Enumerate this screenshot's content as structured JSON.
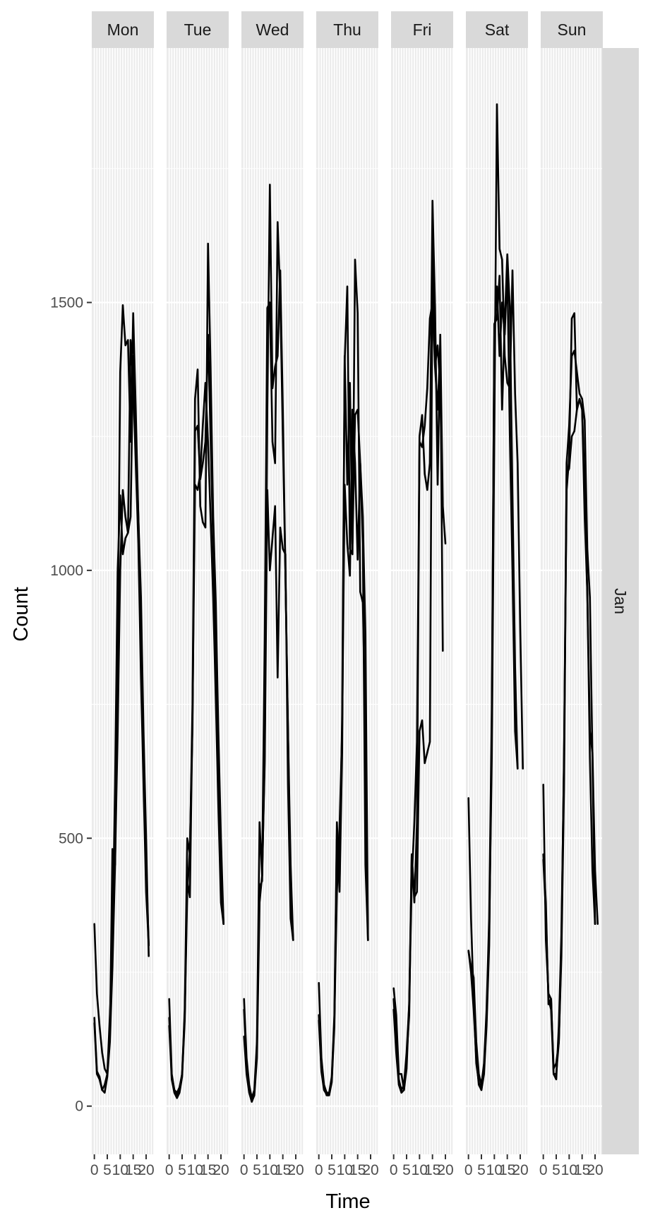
{
  "chart_data": {
    "type": "line",
    "facet_columns": [
      "Mon",
      "Tue",
      "Wed",
      "Thu",
      "Fri",
      "Sat",
      "Sun"
    ],
    "facet_row": "Jan",
    "xlabel": "Time",
    "ylabel": "Count",
    "xlim": [
      -1,
      23
    ],
    "ylim": [
      -90,
      1975
    ],
    "x_ticks": [
      0,
      5,
      10,
      15,
      20
    ],
    "x_tick_labels": [
      "0",
      "5",
      "10",
      "15",
      "20"
    ],
    "y_ticks": [
      0,
      500,
      1000,
      1500
    ],
    "y_tick_labels": [
      "0",
      "500",
      "1000",
      "1500"
    ],
    "grid": true,
    "line_color": "#000000",
    "panel_background": "#ebebeb",
    "strip_background": "#d9d9d9",
    "hours": [
      0,
      1,
      2,
      3,
      4,
      5,
      6,
      7,
      8,
      9,
      10,
      11,
      12,
      13,
      14,
      15,
      16,
      17,
      18,
      19,
      20,
      21,
      22,
      23
    ],
    "panels": [
      {
        "day": "Mon",
        "series": [
          [
            340,
            210,
            150,
            100,
            70,
            60,
            130,
            480,
            450,
            840,
            1370,
            1495,
            1420,
            1430,
            1240,
            1480,
            1300,
            1100,
            950,
            700,
            500,
            280
          ],
          [
            165,
            65,
            55,
            30,
            40,
            60,
            170,
            300,
            600,
            1000,
            1140,
            1030,
            1060,
            1070,
            1430,
            1350,
            1200,
            1050,
            800,
            600,
            400,
            300
          ],
          [
            155,
            60,
            50,
            30,
            25,
            55,
            120,
            260,
            450,
            700,
            1000,
            1150,
            1100,
            1070,
            1100,
            1400,
            1250,
            1100,
            900,
            650,
            450,
            300
          ]
        ]
      },
      {
        "day": "Tue",
        "series": [
          [
            200,
            60,
            30,
            25,
            35,
            60,
            180,
            500,
            470,
            750,
            1320,
            1375,
            1120,
            1090,
            1080,
            1610,
            1380,
            1100,
            940,
            700,
            500,
            340
          ],
          [
            165,
            55,
            30,
            20,
            30,
            60,
            170,
            420,
            390,
            730,
            1160,
            1150,
            1180,
            1270,
            1350,
            1240,
            1100,
            950,
            760,
            560,
            380,
            340
          ],
          [
            150,
            50,
            25,
            15,
            25,
            55,
            160,
            400,
            480,
            710,
            1260,
            1270,
            1170,
            1200,
            1240,
            1440,
            1250,
            1050,
            880,
            650,
            450,
            340
          ]
        ]
      },
      {
        "day": "Wed",
        "series": [
          [
            200,
            90,
            40,
            15,
            30,
            120,
            530,
            430,
            870,
            1490,
            1500,
            1240,
            1200,
            1650,
            1510,
            1250,
            1000,
            700,
            450,
            310
          ],
          [
            180,
            75,
            35,
            10,
            25,
            110,
            410,
            420,
            660,
            1300,
            1720,
            1340,
            1380,
            1400,
            1560,
            1300,
            1000,
            700,
            400,
            310
          ],
          [
            130,
            60,
            25,
            8,
            20,
            90,
            380,
            430,
            640,
            1150,
            1000,
            1060,
            1120,
            800,
            1080,
            1040,
            1030,
            600,
            350,
            310
          ]
        ]
      },
      {
        "day": "Thu",
        "series": [
          [
            230,
            90,
            40,
            25,
            25,
            55,
            170,
            530,
            410,
            730,
            1390,
            1530,
            1040,
            1030,
            1580,
            1480,
            960,
            940,
            700,
            310
          ],
          [
            170,
            70,
            35,
            20,
            20,
            45,
            150,
            510,
            400,
            660,
            1400,
            1160,
            1350,
            1050,
            1290,
            1300,
            1200,
            1050,
            450,
            310
          ],
          [
            160,
            65,
            30,
            22,
            22,
            50,
            160,
            400,
            520,
            700,
            1160,
            1050,
            990,
            1300,
            1200,
            1020,
            1200,
            1100,
            880,
            310
          ]
        ]
      },
      {
        "day": "Fri",
        "series": [
          [
            220,
            170,
            60,
            60,
            30,
            90,
            170,
            470,
            380,
            530,
            1250,
            1290,
            1180,
            1150,
            1200,
            1690,
            1490,
            1160,
            1440,
            1120,
            1050
          ],
          [
            200,
            120,
            50,
            30,
            40,
            100,
            190,
            470,
            390,
            400,
            700,
            720,
            640,
            660,
            680,
            1590,
            1380,
            1300,
            1420,
            850
          ],
          [
            180,
            100,
            40,
            25,
            30,
            70,
            190,
            420,
            530,
            680,
            1240,
            1230,
            1270,
            1340,
            1470,
            1500,
            1380,
            1420,
            1340,
            1100
          ]
        ]
      },
      {
        "day": "Sat",
        "series": [
          [
            575,
            350,
            200,
            80,
            45,
            30,
            70,
            160,
            320,
            650,
            1260,
            1870,
            1600,
            1580,
            1400,
            1350,
            1340,
            1560,
            1330,
            1200,
            890,
            630
          ],
          [
            290,
            250,
            180,
            90,
            40,
            30,
            60,
            150,
            300,
            700,
            1460,
            1470,
            1550,
            1300,
            1460,
            1590,
            1490,
            1140,
            820,
            630
          ],
          [
            290,
            260,
            240,
            120,
            60,
            40,
            80,
            180,
            350,
            740,
            1440,
            1530,
            1400,
            1500,
            1440,
            1560,
            1250,
            1000,
            700,
            630
          ]
        ]
      },
      {
        "day": "Sun",
        "series": [
          [
            600,
            310,
            210,
            200,
            70,
            80,
            120,
            300,
            650,
            1150,
            1210,
            1470,
            1480,
            1300,
            1320,
            1300,
            1100,
            960,
            700,
            660,
            440,
            340
          ],
          [
            470,
            380,
            190,
            200,
            60,
            50,
            150,
            320,
            640,
            1200,
            1270,
            1400,
            1410,
            1370,
            1330,
            1320,
            1280,
            1040,
            950,
            650,
            340
          ],
          [
            460,
            360,
            200,
            180,
            60,
            60,
            120,
            280,
            590,
            1180,
            1190,
            1250,
            1260,
            1300,
            1320,
            1300,
            1150,
            960,
            650,
            440,
            340
          ]
        ]
      }
    ]
  }
}
